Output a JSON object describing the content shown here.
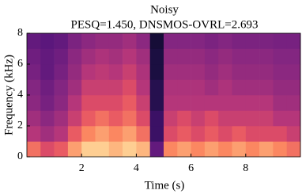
{
  "chart_data": {
    "type": "heatmap",
    "title": "Noisy",
    "subtitle": "PESQ=1.450, DNSMOS-OVRL=2.693",
    "xlabel": "Time (s)",
    "ylabel": "Frequency (kHz)",
    "xlim": [
      0,
      10
    ],
    "ylim": [
      0,
      8
    ],
    "xticks": [
      2,
      4,
      6,
      8
    ],
    "yticks": [
      0,
      2,
      4,
      6,
      8
    ],
    "colormap": "magma",
    "xbins": [
      0,
      0.5,
      1,
      1.5,
      2,
      2.5,
      3,
      3.5,
      4,
      4.5,
      5,
      5.5,
      6,
      6.5,
      7,
      7.5,
      8,
      8.5,
      9,
      9.5,
      10
    ],
    "ybins": [
      0,
      1,
      2,
      3,
      4,
      5,
      6,
      7,
      8
    ],
    "values": [
      [
        0.7,
        0.6,
        0.65,
        0.8,
        0.9,
        0.9,
        0.85,
        0.9,
        0.85,
        0.3,
        0.75,
        0.8,
        0.75,
        0.8,
        0.75,
        0.8,
        0.75,
        0.8,
        0.75,
        0.7
      ],
      [
        0.5,
        0.45,
        0.5,
        0.65,
        0.75,
        0.8,
        0.75,
        0.8,
        0.7,
        0.2,
        0.6,
        0.65,
        0.6,
        0.65,
        0.6,
        0.65,
        0.6,
        0.6,
        0.6,
        0.55
      ],
      [
        0.45,
        0.4,
        0.45,
        0.55,
        0.65,
        0.7,
        0.65,
        0.7,
        0.6,
        0.2,
        0.55,
        0.6,
        0.55,
        0.6,
        0.55,
        0.55,
        0.55,
        0.55,
        0.5,
        0.5
      ],
      [
        0.4,
        0.35,
        0.4,
        0.5,
        0.6,
        0.6,
        0.6,
        0.65,
        0.55,
        0.15,
        0.5,
        0.5,
        0.5,
        0.5,
        0.5,
        0.5,
        0.5,
        0.5,
        0.45,
        0.45
      ],
      [
        0.38,
        0.33,
        0.38,
        0.45,
        0.55,
        0.55,
        0.55,
        0.6,
        0.5,
        0.15,
        0.48,
        0.48,
        0.48,
        0.45,
        0.48,
        0.45,
        0.45,
        0.45,
        0.42,
        0.42
      ],
      [
        0.35,
        0.3,
        0.35,
        0.42,
        0.5,
        0.52,
        0.5,
        0.55,
        0.48,
        0.12,
        0.45,
        0.45,
        0.45,
        0.42,
        0.45,
        0.42,
        0.42,
        0.42,
        0.4,
        0.4
      ],
      [
        0.33,
        0.3,
        0.33,
        0.4,
        0.45,
        0.48,
        0.46,
        0.5,
        0.45,
        0.12,
        0.42,
        0.42,
        0.42,
        0.4,
        0.42,
        0.4,
        0.4,
        0.4,
        0.38,
        0.38
      ],
      [
        0.3,
        0.28,
        0.3,
        0.36,
        0.4,
        0.42,
        0.42,
        0.45,
        0.4,
        0.1,
        0.38,
        0.38,
        0.38,
        0.36,
        0.38,
        0.36,
        0.36,
        0.36,
        0.35,
        0.35
      ]
    ]
  }
}
